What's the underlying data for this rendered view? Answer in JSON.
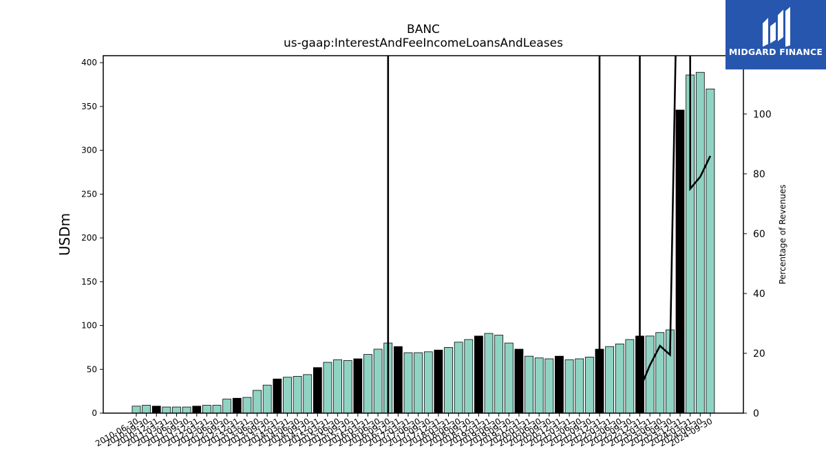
{
  "chart_data": {
    "type": "bar",
    "title": "BANC",
    "subtitle": "us-gaap:InterestAndFeeIncomeLoansAndLeases",
    "ylabel": "USDm",
    "y2label": "Percentage of Revenues",
    "ylim": [
      0,
      408
    ],
    "y2lim": [
      0,
      119.5
    ],
    "yticks": [
      0,
      50,
      100,
      150,
      200,
      250,
      300,
      350,
      400
    ],
    "y2ticks": [
      0,
      20,
      40,
      60,
      80,
      100
    ],
    "grid": false,
    "colors": {
      "quarterly": "#8fd3c3",
      "annual": "#000000",
      "line": "#000000",
      "edge": "#000000"
    },
    "categories": [
      "2010-06-30",
      "2010-09-30",
      "2010-12-31",
      "2011-03-31",
      "2011-06-30",
      "2011-09-30",
      "2011-12-31",
      "2012-03-31",
      "2012-06-30",
      "2012-09-30",
      "2012-12-31",
      "2013-03-31",
      "2013-06-30",
      "2013-09-30",
      "2013-12-31",
      "2014-03-31",
      "2014-06-30",
      "2014-09-30",
      "2014-12-31",
      "2015-03-31",
      "2015-06-30",
      "2015-09-30",
      "2015-12-31",
      "2016-03-31",
      "2016-06-30",
      "2016-09-30",
      "2016-12-31",
      "2017-03-31",
      "2017-06-30",
      "2017-09-30",
      "2017-12-31",
      "2018-03-31",
      "2018-06-30",
      "2018-09-30",
      "2018-12-31",
      "2019-03-31",
      "2019-06-30",
      "2019-09-30",
      "2019-12-31",
      "2020-03-31",
      "2020-06-30",
      "2020-09-30",
      "2020-12-31",
      "2021-03-31",
      "2021-06-30",
      "2021-09-30",
      "2021-12-31",
      "2022-03-31",
      "2022-06-30",
      "2022-09-30",
      "2022-12-31",
      "2023-03-31",
      "2023-06-30",
      "2023-09-30",
      "2023-12-31",
      "2024-03-31",
      "2024-06-30",
      "2024-09-30"
    ],
    "series": [
      {
        "values": [
          8,
          9,
          8,
          7,
          7,
          7,
          8,
          9,
          9,
          16,
          17,
          18,
          26,
          32,
          39,
          41,
          42,
          44,
          52,
          58,
          61,
          60,
          62,
          67,
          73,
          80,
          76,
          69,
          69,
          70,
          72,
          75,
          81,
          84,
          88,
          91,
          89,
          80,
          73,
          65,
          63,
          62,
          65,
          61,
          62,
          64,
          73,
          76,
          79,
          84,
          88,
          88,
          92,
          95,
          346,
          386,
          389,
          370
        ]
      },
      {
        "annual": [
          false,
          false,
          true,
          false,
          false,
          false,
          true,
          false,
          false,
          false,
          true,
          false,
          false,
          false,
          true,
          false,
          false,
          false,
          true,
          false,
          false,
          false,
          true,
          false,
          false,
          false,
          true,
          false,
          false,
          false,
          true,
          false,
          false,
          false,
          true,
          false,
          false,
          false,
          true,
          false,
          false,
          false,
          true,
          false,
          false,
          false,
          true,
          false,
          false,
          false,
          true,
          false,
          false,
          false,
          true,
          false,
          false,
          false
        ]
      },
      {
        "line_percentage_of_revenues": [
          null,
          null,
          null,
          null,
          null,
          null,
          null,
          null,
          null,
          null,
          null,
          null,
          null,
          null,
          null,
          null,
          null,
          null,
          null,
          null,
          null,
          null,
          null,
          null,
          null,
          null,
          null,
          null,
          null,
          null,
          null,
          null,
          null,
          null,
          null,
          null,
          null,
          null,
          null,
          null,
          null,
          null,
          null,
          null,
          null,
          null,
          null,
          null,
          null,
          null,
          null,
          null,
          null,
          null,
          null,
          null,
          null,
          null
        ]
      }
    ],
    "line_points": [
      {
        "category": "2016-09-30",
        "value": 200
      },
      {
        "category": "2016-09-30",
        "value": 0
      },
      {
        "category": "2021-12-31",
        "value": 200
      },
      {
        "category": "2021-12-31",
        "value": 0
      },
      {
        "category": "2022-12-31",
        "value": 200
      },
      {
        "category": "2022-12-31",
        "value": 8
      },
      {
        "category": "2023-03-31",
        "value": 16
      },
      {
        "category": "2023-06-30",
        "value": 22.5
      },
      {
        "category": "2023-09-30",
        "value": 19.5
      },
      {
        "category": "2023-12-31",
        "value": 200
      },
      {
        "category": "2024-03-31",
        "value": 200
      },
      {
        "category": "2024-03-31",
        "value": 75
      },
      {
        "category": "2024-06-30",
        "value": 79
      },
      {
        "category": "2024-09-30",
        "value": 86
      }
    ]
  },
  "logo": {
    "text": "MIDGARD FINANCE",
    "icon": "midgard-logo-icon"
  }
}
